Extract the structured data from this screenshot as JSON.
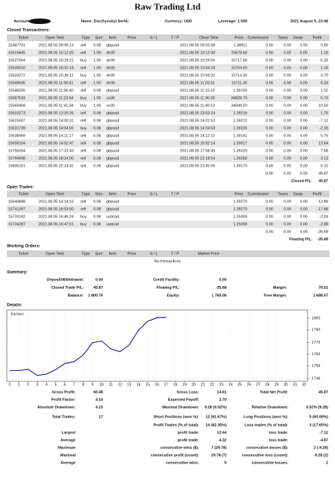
{
  "header": {
    "title": "Raw Trading Ltd",
    "account_label": "Account:",
    "name": "Name: Durzhynskyi Serhii",
    "currency": "Currency: USD",
    "leverage": "Leverage: 1:500",
    "date": "2021 August 5, 23:48"
  },
  "closed": {
    "title": "Closed Transactions:",
    "columns": [
      "Ticket",
      "Open Time",
      "Type",
      "Size",
      "Item",
      "Price",
      "S / L",
      "T / P",
      "Close Time",
      "Price",
      "Commission",
      "Taxes",
      "Swap",
      "Profit"
    ],
    "rows": [
      [
        "15487731",
        "2021.08.05 09:00:13",
        "sell",
        "0.08",
        "gbpusd",
        null,
        null,
        null,
        "2021.08.05 09:02:08",
        "1.38911",
        "0.00",
        "0.00",
        "0.00",
        "0.00"
      ],
      [
        "15519445",
        "2021.08.05 10:12:25",
        "sell",
        "1.00",
        "de30",
        null,
        null,
        null,
        "2021.08.05 10:12:30",
        "15679.60",
        "0.00",
        "0.00",
        "0.00",
        "1.18"
      ],
      [
        "15527664",
        "2021.08.05 10:29:21",
        "buy",
        "1.00",
        "de30",
        null,
        null,
        null,
        "2021.08.05 10:29:56",
        "15717.60",
        "0.00",
        "0.00",
        "0.00",
        "-5.33"
      ],
      [
        "15530010",
        "2021.08.05 10:32:18",
        "sell",
        "1.00",
        "de30",
        null,
        null,
        null,
        "2021.08.05 10:34:18",
        "15704.60",
        "0.00",
        "0.00",
        "0.00",
        "1.18"
      ],
      [
        "15533272",
        "2021.08.05 10:39:11",
        "buy",
        "1.00",
        "de30",
        null,
        null,
        null,
        "2021.08.05 10:58:32",
        "15714.30",
        "0.00",
        "0.00",
        "0.00",
        "3.79"
      ],
      [
        "15545630",
        "2021.08.05 11:00:41",
        "sell",
        "1.00",
        "de30",
        null,
        null,
        null,
        "2021.08.05 11:03:31",
        "15711.30",
        "0.00",
        "0.00",
        "0.00",
        "5.33"
      ],
      [
        "15548255",
        "2021.08.05 11:06:40",
        "sell",
        "0.08",
        "gbpusd",
        null,
        null,
        null,
        "2021.08.05 11:15:10",
        "1.39159",
        "0.00",
        "0.00",
        "0.00",
        "1.52"
      ],
      [
        "15557533",
        "2021.08.05 11:23:54",
        "buy",
        "1.00",
        "us30",
        null,
        null,
        null,
        "2021.08.05 11:36:28",
        "34828.70",
        "0.00",
        "0.00",
        "0.00",
        "5.70"
      ],
      [
        "15566468",
        "2021.08.05 11:41:34",
        "buy",
        "1.00",
        "us30",
        null,
        null,
        null,
        "2021.08.05 11:49:23",
        "34848.20",
        "0.00",
        "0.00",
        "0.00",
        "10.50"
      ],
      [
        "15610273",
        "2021.08.05 13:20:26",
        "sell",
        "0.08",
        "gbpusd",
        null,
        null,
        null,
        "2021.08.05 13:53:24",
        "1.39216",
        "0.00",
        "0.00",
        "0.00",
        "1.76"
      ],
      [
        "15625697",
        "2021.08.05 14:00:31",
        "sell",
        "0.08",
        "gbpusd",
        null,
        null,
        null,
        "2021.08.05 14:01:52",
        "1.39222",
        "0.00",
        "0.00",
        "0.00",
        "-7.12"
      ],
      [
        "15631739",
        "2021.08.05 14:04:06",
        "buy",
        "0.08",
        "gbpusd",
        null,
        null,
        null,
        "2021.08.05 14:04:53",
        "1.39226",
        "0.00",
        "0.00",
        "0.00",
        "-2.16"
      ],
      [
        "15638969",
        "2021.08.05 14:11:17",
        "sell",
        "0.08",
        "gbpusd",
        null,
        null,
        null,
        "2021.08.05 14:12:10",
        "1.39141",
        "0.00",
        "0.00",
        "0.00",
        "5.76"
      ],
      [
        "15656104",
        "2021.08.05 14:52:47",
        "sell",
        "0.08",
        "gbpusd",
        null,
        null,
        null,
        "2021.08.05 16:52:14",
        "1.39017",
        "0.00",
        "0.00",
        "0.00",
        "12.64"
      ],
      [
        "15766354",
        "2021.08.05 17:22:43",
        "sell",
        "0.08",
        "gbpusd",
        null,
        null,
        null,
        "2021.08.05 17:58:49",
        "1.39229",
        "0.00",
        "0.00",
        "0.00",
        "7.68"
      ],
      [
        "15794908",
        "2021.08.05 18:24:00",
        "sell",
        "0.08",
        "gbpusd",
        null,
        null,
        null,
        "2021.08.05 22:18:54",
        "1.39268",
        "0.00",
        "0.00",
        "0.00",
        "3.12"
      ],
      [
        "15836151",
        "2021.08.05 22:24:41",
        "sell",
        "0.08",
        "gbpusd",
        null,
        null,
        null,
        "2021.08.05 23:35:06",
        "1.39270",
        "0.00",
        "0.00",
        "0.00",
        "0.32"
      ]
    ],
    "totals": [
      "0.00",
      "0.00",
      "0.00",
      "45.87"
    ],
    "total_label": "Closed P/L:",
    "total_value": "45.87"
  },
  "open": {
    "title": "Open Trades:",
    "columns": [
      "Ticket",
      "Open Time",
      "Type",
      "Size",
      "Item",
      "Price",
      "S / L",
      "T / P",
      null,
      "Price",
      "Commission",
      "Taxes",
      "Swap",
      "Profit"
    ],
    "rows": [
      [
        "15640848",
        "2021.08.05 14:14:16",
        "sell",
        "0.08",
        "gbpusd",
        null,
        null,
        null,
        null,
        "1.39270",
        "0.00",
        "0.00",
        "0.00",
        "-12.88"
      ],
      [
        "15741297",
        "2021.08.05 16:53:50",
        "sell",
        "0.08",
        "gbpusd",
        null,
        null,
        null,
        null,
        "1.39270",
        "0.00",
        "0.00",
        "0.00",
        "-17.68"
      ],
      [
        "15733182",
        "2021.08.05 16:46:24",
        "buy",
        "0.08",
        "usdcad",
        null,
        null,
        null,
        null,
        "1.25009",
        "0.00",
        "0.00",
        "0.00",
        "-2.24"
      ],
      [
        "15734287",
        "2021.08.05 16:47:51",
        "buy",
        "0.08",
        "usdcad",
        null,
        null,
        null,
        null,
        "1.25009",
        "0.00",
        "0.00",
        "0.00",
        "-2.88"
      ]
    ],
    "totals": [
      "0.00",
      "0.00",
      "0.00",
      "-35.68"
    ],
    "total_label": "Floating P/L:",
    "total_value": "-35.68"
  },
  "working": {
    "title": "Working Orders:",
    "columns": [
      "Ticket",
      "Open Time",
      "Type",
      "Size",
      "Item",
      "Price",
      "S / L",
      "T / P",
      "Market Price",
      null,
      null,
      null,
      null,
      null
    ],
    "note": "No transactions"
  },
  "summary": {
    "title": "Summary:",
    "rows": [
      [
        [
          "Deposit/Withdrawal:",
          "0.00"
        ],
        [
          "Credit Facility:",
          "0.00"
        ],
        null
      ],
      [
        [
          "Closed Trade P/L:",
          "45.87"
        ],
        [
          "Floating P/L:",
          "-35.68"
        ],
        [
          "Margin:",
          "76.51"
        ]
      ],
      [
        [
          "Balance:",
          "1 800.76"
        ],
        [
          "Equity:",
          "1 765.08"
        ],
        [
          "Free Margin:",
          "1 688.57"
        ]
      ]
    ]
  },
  "details": {
    "title": "Details:",
    "rows": [
      [
        [
          "Gross Profit:",
          "60.48"
        ],
        [
          "Gross Loss:",
          "14.61"
        ],
        [
          "Total Net Profit:",
          "45.87"
        ]
      ],
      [
        [
          "Profit Factor:",
          "4.14"
        ],
        [
          "Expected Payoff:",
          "2.70"
        ],
        null
      ],
      [
        [
          "Absolute Drawdown:",
          "4.15"
        ],
        [
          "Maximal Drawdown:",
          "9.28 (0.52%)"
        ],
        [
          "Relative Drawdown:",
          "0.52% (9.28)"
        ]
      ],
      [
        [
          "Total Trades:",
          "17"
        ],
        [
          "Short Positions (won %):",
          "12 (91.67%)"
        ],
        [
          "Long Positions (won %):",
          "5 (60.00%)"
        ]
      ],
      [
        null,
        [
          "Profit Trades (% of total):",
          "14 (82.35%)"
        ],
        [
          "Loss trades (% of total):",
          "3 (17.65%)"
        ]
      ],
      [
        [
          "Largest"
        ],
        [
          "profit trade:",
          "12.64"
        ],
        [
          "loss trade:",
          "-7.12"
        ]
      ],
      [
        [
          "Average"
        ],
        [
          "profit trade:",
          "4.32"
        ],
        [
          "loss trade:",
          "-4.87"
        ]
      ],
      [
        [
          "Maximum"
        ],
        [
          "consecutive wins ($):",
          "7 (29.78)"
        ],
        [
          "consecutive losses ($):",
          "2 (-9.28)"
        ]
      ],
      [
        [
          "Maximal"
        ],
        [
          "consecutive profit (count):",
          "29.78 (7)"
        ],
        [
          "consecutive loss (count):",
          "-9.28 (2)"
        ]
      ],
      [
        [
          "Average"
        ],
        [
          "consecutive wins:",
          "5"
        ],
        [
          "consecutive losses:",
          "2"
        ]
      ]
    ]
  },
  "chart_data": {
    "type": "line",
    "x": [
      0,
      1,
      2,
      3,
      4,
      5,
      6,
      7,
      8,
      9,
      10,
      11,
      12,
      13,
      14,
      15,
      16,
      17
    ],
    "series": [
      {
        "name": "Баланс",
        "color": "#1c1c9c",
        "values": [
          1754.9,
          1754.9,
          1756.1,
          1750.7,
          1751.9,
          1755.7,
          1761.0,
          1762.6,
          1768.3,
          1778.8,
          1780.5,
          1773.4,
          1771.2,
          1777.0,
          1789.6,
          1797.3,
          1800.4,
          1800.8
        ]
      }
    ],
    "xlim": [
      0,
      32
    ],
    "xticks": [
      0,
      1,
      2,
      3,
      4,
      5,
      6,
      7,
      8,
      9,
      10,
      11,
      12,
      13,
      14,
      15,
      16,
      17,
      18,
      19,
      20,
      21,
      22,
      23,
      24,
      25,
      26,
      27,
      28,
      29,
      30,
      31,
      32
    ],
    "ylim": [
      1746,
      1803
    ],
    "yticks": [
      1748,
      1759,
      1769,
      1779,
      1790,
      1800
    ],
    "grid": true
  }
}
